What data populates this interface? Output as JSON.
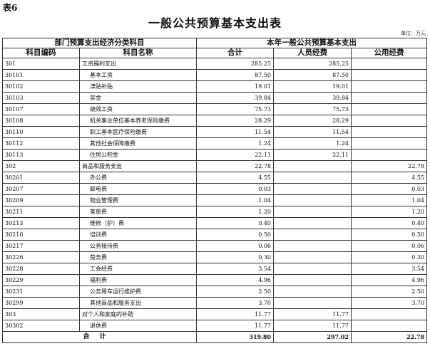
{
  "label": "表6",
  "title": "一般公共预算基本支出表",
  "unit": "单位：万元",
  "header": {
    "group_left": "部门预算支出经济分类科目",
    "group_right": "本年一般公共预算基本支出",
    "columns": [
      "科目编码",
      "科目名称",
      "合计",
      "人员经费",
      "公用经费"
    ]
  },
  "rows": [
    {
      "code": "301",
      "name": "工资福利支出",
      "total": "285.25",
      "personnel": "285.25",
      "public": "",
      "level": 1
    },
    {
      "code": "30101",
      "name": "基本工资",
      "total": "87.50",
      "personnel": "87.50",
      "public": "",
      "level": 2
    },
    {
      "code": "30102",
      "name": "津贴补贴",
      "total": "19.01",
      "personnel": "19.01",
      "public": "",
      "level": 2
    },
    {
      "code": "30103",
      "name": "奖金",
      "total": "39.84",
      "personnel": "39.84",
      "public": "",
      "level": 2
    },
    {
      "code": "30107",
      "name": "绩效工资",
      "total": "75.73",
      "personnel": "75.73",
      "public": "",
      "level": 2
    },
    {
      "code": "30108",
      "name": "机关事业单位基本养老保险缴费",
      "total": "28.29",
      "personnel": "28.29",
      "public": "",
      "level": 2
    },
    {
      "code": "30110",
      "name": "职工基本医疗保险缴费",
      "total": "11.54",
      "personnel": "11.54",
      "public": "",
      "level": 2
    },
    {
      "code": "30112",
      "name": "其他社会保障缴费",
      "total": "1.24",
      "personnel": "1.24",
      "public": "",
      "level": 2
    },
    {
      "code": "30113",
      "name": "住房公积金",
      "total": "22.11",
      "personnel": "22.11",
      "public": "",
      "level": 2
    },
    {
      "code": "302",
      "name": "商品和服务支出",
      "total": "22.78",
      "personnel": "",
      "public": "22.78",
      "level": 1
    },
    {
      "code": "30201",
      "name": "办公费",
      "total": "4.55",
      "personnel": "",
      "public": "4.55",
      "level": 2
    },
    {
      "code": "30207",
      "name": "邮电费",
      "total": "0.03",
      "personnel": "",
      "public": "0.03",
      "level": 2
    },
    {
      "code": "30209",
      "name": "物业管理费",
      "total": "1.04",
      "personnel": "",
      "public": "1.04",
      "level": 2
    },
    {
      "code": "30211",
      "name": "差旅费",
      "total": "1.20",
      "personnel": "",
      "public": "1.20",
      "level": 2
    },
    {
      "code": "30213",
      "name": "维修（护）费",
      "total": "0.40",
      "personnel": "",
      "public": "0.40",
      "level": 2
    },
    {
      "code": "30216",
      "name": "培训费",
      "total": "0.50",
      "personnel": "",
      "public": "0.50",
      "level": 2
    },
    {
      "code": "30217",
      "name": "公务接待费",
      "total": "0.06",
      "personnel": "",
      "public": "0.06",
      "level": 2
    },
    {
      "code": "30226",
      "name": "劳务费",
      "total": "0.30",
      "personnel": "",
      "public": "0.30",
      "level": 2
    },
    {
      "code": "30228",
      "name": "工会经费",
      "total": "3.54",
      "personnel": "",
      "public": "3.54",
      "level": 2
    },
    {
      "code": "30229",
      "name": "福利费",
      "total": "4.96",
      "personnel": "",
      "public": "4.96",
      "level": 2
    },
    {
      "code": "30231",
      "name": "公务用车运行维护费",
      "total": "2.50",
      "personnel": "",
      "public": "2.50",
      "level": 2
    },
    {
      "code": "30299",
      "name": "其他商品和服务支出",
      "total": "3.70",
      "personnel": "",
      "public": "3.70",
      "level": 2
    },
    {
      "code": "303",
      "name": "对个人和家庭的补助",
      "total": "11.77",
      "personnel": "11.77",
      "public": "",
      "level": 1
    },
    {
      "code": "30302",
      "name": "退休费",
      "total": "11.77",
      "personnel": "11.77",
      "public": "",
      "level": 2
    }
  ],
  "total_row": {
    "label": "合计",
    "total": "319.80",
    "personnel": "297.02",
    "public": "22.78"
  }
}
